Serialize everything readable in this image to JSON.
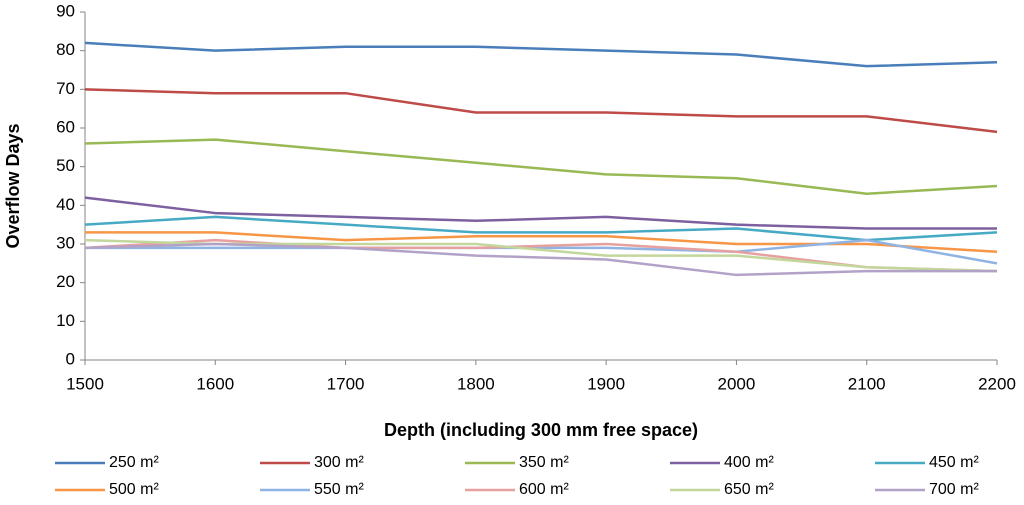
{
  "chart_data": {
    "type": "line",
    "xlabel": "Depth (including 300 mm free space)",
    "ylabel": "Overflow Days",
    "x": [
      1500,
      1600,
      1700,
      1800,
      1900,
      2000,
      2100,
      2200
    ],
    "xlim": [
      1500,
      2200
    ],
    "xticks": [
      1500,
      1600,
      1700,
      1800,
      1900,
      2000,
      2100,
      2200
    ],
    "ylim": [
      0,
      90
    ],
    "yticks": [
      0,
      10,
      20,
      30,
      40,
      50,
      60,
      70,
      80,
      90
    ],
    "grid": false,
    "legend": "bottom",
    "series": [
      {
        "name": "250 m²",
        "color": "#4a7ebb",
        "values": [
          82,
          80,
          81,
          81,
          80,
          79,
          76,
          77
        ]
      },
      {
        "name": "300 m²",
        "color": "#be4b48",
        "values": [
          70,
          69,
          69,
          64,
          64,
          63,
          63,
          59
        ]
      },
      {
        "name": "350 m²",
        "color": "#98b954",
        "values": [
          56,
          57,
          54,
          51,
          48,
          47,
          43,
          45
        ]
      },
      {
        "name": "400 m²",
        "color": "#7d60a0",
        "values": [
          42,
          38,
          37,
          36,
          37,
          35,
          34,
          34
        ]
      },
      {
        "name": "450 m²",
        "color": "#46aac5",
        "values": [
          35,
          37,
          35,
          33,
          33,
          34,
          31,
          33
        ]
      },
      {
        "name": "500 m²",
        "color": "#f79646",
        "values": [
          33,
          33,
          31,
          32,
          32,
          30,
          30,
          28
        ]
      },
      {
        "name": "550 m²",
        "color": "#8fb4e3",
        "values": [
          29,
          29,
          29,
          29,
          29,
          28,
          31,
          25
        ]
      },
      {
        "name": "600 m²",
        "color": "#e6a09f",
        "values": [
          29,
          31,
          29,
          29,
          30,
          28,
          24,
          23
        ]
      },
      {
        "name": "650 m²",
        "color": "#c3d69b",
        "values": [
          31,
          30,
          30,
          30,
          27,
          27,
          24,
          23
        ]
      },
      {
        "name": "700 m²",
        "color": "#b3a2c7",
        "values": [
          29,
          30,
          29,
          27,
          26,
          22,
          23,
          23
        ]
      }
    ]
  }
}
